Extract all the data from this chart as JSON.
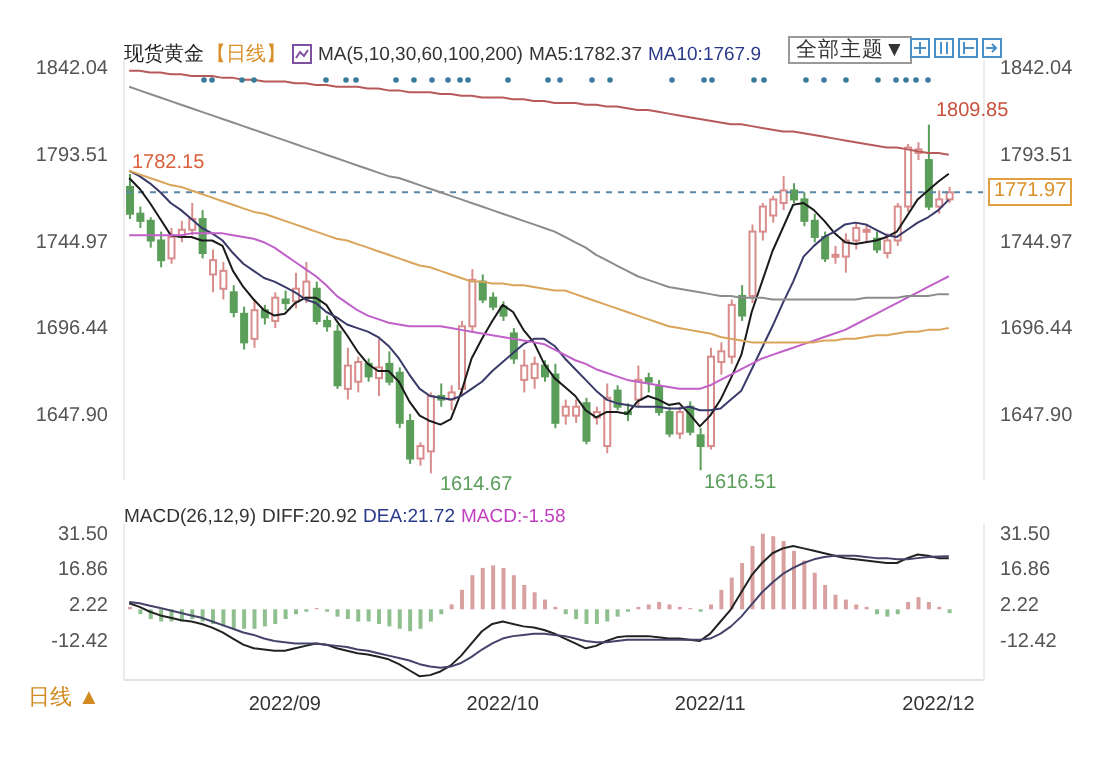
{
  "chart_data": [
    {
      "type": "candlestick",
      "title": "现货黄金",
      "subtitle": "【日线】",
      "categories": [
        null,
        null,
        null,
        null,
        null,
        null,
        null,
        null,
        null,
        null,
        null,
        null,
        null,
        null,
        null,
        "2022/09",
        null,
        null,
        null,
        null,
        null,
        null,
        null,
        null,
        null,
        null,
        null,
        null,
        null,
        null,
        null,
        null,
        null,
        null,
        null,
        null,
        "2022/10",
        null,
        null,
        null,
        null,
        null,
        null,
        null,
        null,
        null,
        null,
        null,
        null,
        null,
        null,
        null,
        null,
        null,
        null,
        null,
        "2022/11",
        null,
        null,
        null,
        null,
        null,
        null,
        null,
        null,
        null,
        null,
        null,
        null,
        null,
        null,
        null,
        null,
        null,
        null,
        null,
        null,
        null,
        "2022/12",
        null
      ],
      "ohlc": [
        [
          1775,
          1782.15,
          1757,
          1760
        ],
        [
          1760,
          1764,
          1752,
          1756
        ],
        [
          1756,
          1758,
          1741,
          1745
        ],
        [
          1745,
          1750,
          1730,
          1734
        ],
        [
          1735,
          1752,
          1732,
          1747
        ],
        [
          1747,
          1756,
          1744,
          1751
        ],
        [
          1751,
          1766,
          1748,
          1757
        ],
        [
          1757,
          1762,
          1735,
          1738
        ],
        [
          1726,
          1740,
          1716,
          1734
        ],
        [
          1718,
          1733,
          1712,
          1728
        ],
        [
          1716,
          1720,
          1702,
          1705
        ],
        [
          1704,
          1708,
          1684,
          1688
        ],
        [
          1690,
          1712,
          1685,
          1706
        ],
        [
          1706,
          1709,
          1698,
          1702
        ],
        [
          1700,
          1716,
          1696,
          1713
        ],
        [
          1712,
          1717,
          1706,
          1710
        ],
        [
          1711,
          1727,
          1707,
          1718
        ],
        [
          1713,
          1733,
          1710,
          1722
        ],
        [
          1718,
          1722,
          1698,
          1700
        ],
        [
          1700,
          1703,
          1694,
          1697
        ],
        [
          1694,
          1698,
          1662,
          1664
        ],
        [
          1662,
          1685,
          1656,
          1675
        ],
        [
          1666,
          1680,
          1660,
          1677
        ],
        [
          1676,
          1679,
          1666,
          1669
        ],
        [
          1668,
          1690,
          1658,
          1674
        ],
        [
          1676,
          1683,
          1664,
          1666
        ],
        [
          1671,
          1674,
          1640,
          1643
        ],
        [
          1644,
          1648,
          1620,
          1623
        ],
        [
          1623,
          1632,
          1619,
          1630
        ],
        [
          1627,
          1660,
          1614.67,
          1658
        ],
        [
          1658,
          1665,
          1652,
          1656
        ],
        [
          1656,
          1664,
          1650,
          1660
        ],
        [
          1662,
          1700,
          1658,
          1697
        ],
        [
          1697,
          1729,
          1694,
          1723
        ],
        [
          1722,
          1726,
          1710,
          1712
        ],
        [
          1713,
          1716,
          1706,
          1708
        ],
        [
          1708,
          1711,
          1700,
          1703
        ],
        [
          1693,
          1696,
          1676,
          1679
        ],
        [
          1667,
          1684,
          1660,
          1675
        ],
        [
          1668,
          1680,
          1662,
          1676
        ],
        [
          1675,
          1678,
          1666,
          1669
        ],
        [
          1670,
          1676,
          1640,
          1643
        ],
        [
          1647,
          1656,
          1642,
          1652
        ],
        [
          1647,
          1656,
          1643,
          1652
        ],
        [
          1654,
          1657,
          1631,
          1633
        ],
        [
          1646,
          1652,
          1642,
          1649
        ],
        [
          1630,
          1665,
          1626,
          1657
        ],
        [
          1661,
          1664,
          1650,
          1652
        ],
        [
          1649,
          1654,
          1644,
          1648
        ],
        [
          1656,
          1675,
          1652,
          1667
        ],
        [
          1668,
          1671,
          1660,
          1666
        ],
        [
          1663,
          1667,
          1647,
          1649
        ],
        [
          1649,
          1652,
          1635,
          1637
        ],
        [
          1637,
          1652,
          1634,
          1649
        ],
        [
          1652,
          1655,
          1636,
          1638
        ],
        [
          1636,
          1640,
          1616.51,
          1630
        ],
        [
          1630,
          1685,
          1628,
          1680
        ],
        [
          1677,
          1688,
          1670,
          1683
        ],
        [
          1680,
          1712,
          1676,
          1709
        ],
        [
          1714,
          1720,
          1700,
          1703
        ],
        [
          1714,
          1754,
          1710,
          1750
        ],
        [
          1750,
          1766,
          1745,
          1764
        ],
        [
          1759,
          1770,
          1755,
          1768
        ],
        [
          1766,
          1781,
          1762,
          1773
        ],
        [
          1773,
          1777,
          1766,
          1768
        ],
        [
          1768,
          1772,
          1753,
          1756
        ],
        [
          1756,
          1760,
          1744,
          1747
        ],
        [
          1747,
          1750,
          1733,
          1735
        ],
        [
          1736,
          1742,
          1732,
          1737
        ],
        [
          1736,
          1749,
          1727,
          1745
        ],
        [
          1745,
          1755,
          1740,
          1752
        ],
        [
          1750,
          1754,
          1744,
          1751
        ],
        [
          1746,
          1750,
          1738,
          1740
        ],
        [
          1738,
          1749,
          1735,
          1745
        ],
        [
          1745,
          1766,
          1742,
          1764
        ],
        [
          1764,
          1799,
          1761,
          1797
        ],
        [
          1794,
          1800,
          1790,
          1796
        ],
        [
          1790,
          1809.85,
          1762,
          1764
        ],
        [
          1764,
          1773,
          1760,
          1768
        ],
        [
          1768,
          1775,
          1766,
          1771.97
        ]
      ],
      "colors": [
        "#5a9e5a",
        "#5a9e5a",
        "#5a9e5a",
        "#5a9e5a",
        "#d98c8c",
        "#d98c8c",
        "#d98c8c",
        "#5a9e5a",
        "#d98c8c",
        "#d98c8c",
        "#5a9e5a",
        "#5a9e5a",
        "#d98c8c",
        "#5a9e5a",
        "#d98c8c",
        "#5a9e5a",
        "#d98c8c",
        "#d98c8c",
        "#5a9e5a",
        "#5a9e5a",
        "#5a9e5a",
        "#d98c8c",
        "#d98c8c",
        "#5a9e5a",
        "#d98c8c",
        "#5a9e5a",
        "#5a9e5a",
        "#5a9e5a",
        "#d98c8c",
        "#d98c8c",
        "#5a9e5a",
        "#d98c8c",
        "#d98c8c",
        "#d98c8c",
        "#5a9e5a",
        "#5a9e5a",
        "#5a9e5a",
        "#5a9e5a",
        "#d98c8c",
        "#d98c8c",
        "#5a9e5a",
        "#5a9e5a",
        "#d98c8c",
        "#d98c8c",
        "#5a9e5a",
        "#d98c8c",
        "#d98c8c",
        "#5a9e5a",
        "#5a9e5a",
        "#d98c8c",
        "#5a9e5a",
        "#5a9e5a",
        "#5a9e5a",
        "#d98c8c",
        "#5a9e5a",
        "#5a9e5a",
        "#d98c8c",
        "#d98c8c",
        "#d98c8c",
        "#5a9e5a",
        "#d98c8c",
        "#d98c8c",
        "#d98c8c",
        "#d98c8c",
        "#5a9e5a",
        "#5a9e5a",
        "#5a9e5a",
        "#5a9e5a",
        "#d98c8c",
        "#d98c8c",
        "#d98c8c",
        "#d98c8c",
        "#5a9e5a",
        "#d98c8c",
        "#d98c8c",
        "#d98c8c",
        "#d98c8c",
        "#5a9e5a",
        "#d98c8c",
        "#d98c8c"
      ],
      "series": [
        {
          "type": "line",
          "color": "#1a1a1a",
          "values": [
            1780,
            1774,
            1766,
            1757,
            1748,
            1747,
            1747,
            1745,
            1745,
            1742,
            1728,
            1719,
            1712,
            1706,
            1703,
            1704,
            1710,
            1713,
            1713,
            1709,
            1700,
            1692,
            1683,
            1676,
            1672,
            1672,
            1666,
            1655,
            1647,
            1644,
            1642,
            1645,
            1660,
            1679,
            1690,
            1700,
            1709,
            1705,
            1695,
            1688,
            1676,
            1668,
            1663,
            1658,
            1650,
            1646,
            1649,
            1649,
            1648,
            1655,
            1658,
            1656,
            1653,
            1654,
            1648,
            1641,
            1647,
            1656,
            1668,
            1681,
            1705,
            1722,
            1739,
            1752,
            1765,
            1766,
            1762,
            1756,
            1749,
            1744,
            1743,
            1744,
            1745,
            1747,
            1750,
            1759,
            1768,
            1773,
            1778,
            1782.37
          ]
        },
        {
          "type": "line",
          "color": "#3a3a6a",
          "values": [
            1784,
            1781,
            1777,
            1772,
            1766,
            1762,
            1757,
            1752,
            1749,
            1745,
            1738,
            1732,
            1728,
            1724,
            1722,
            1719,
            1716,
            1712,
            1710,
            1705,
            1702,
            1698,
            1696,
            1694,
            1691,
            1686,
            1679,
            1670,
            1662,
            1658,
            1657,
            1656,
            1658,
            1662,
            1666,
            1672,
            1677,
            1682,
            1687,
            1690,
            1690,
            1686,
            1679,
            1673,
            1667,
            1661,
            1656,
            1654,
            1653,
            1652,
            1652,
            1652,
            1651,
            1651,
            1652,
            1650,
            1650,
            1651,
            1656,
            1661,
            1673,
            1685,
            1697,
            1710,
            1722,
            1736,
            1742,
            1747,
            1750,
            1754,
            1755,
            1754,
            1751,
            1748,
            1747,
            1751,
            1755,
            1758,
            1762,
            1767.9
          ]
        },
        {
          "type": "line",
          "color": "#c060c8",
          "values": [
            1748,
            1748,
            1748,
            1748,
            1748,
            1748,
            1749,
            1749,
            1749,
            1749,
            1748,
            1747,
            1746,
            1744,
            1741,
            1737,
            1733,
            1729,
            1725,
            1720,
            1714,
            1710,
            1706,
            1703,
            1701,
            1699,
            1698,
            1697,
            1697,
            1697,
            1697,
            1696,
            1695,
            1694,
            1693,
            1692,
            1691,
            1690,
            1689,
            1688,
            1687,
            1684,
            1681,
            1678,
            1676,
            1673,
            1671,
            1669,
            1667,
            1666,
            1665,
            1664,
            1663,
            1662,
            1662,
            1662,
            1664,
            1667,
            1670,
            1673,
            1676,
            1679,
            1681,
            1683,
            1685,
            1687,
            1689,
            1691,
            1693,
            1695,
            1698,
            1701,
            1704,
            1707,
            1710,
            1713,
            1716,
            1719,
            1722,
            1725
          ]
        },
        {
          "type": "line",
          "color": "#d9a55a",
          "values": [
            1784,
            1782,
            1780,
            1778,
            1776,
            1775,
            1773,
            1771,
            1769,
            1767,
            1765,
            1763,
            1761,
            1760,
            1758,
            1756,
            1754,
            1752,
            1750,
            1748,
            1746,
            1745,
            1743,
            1741,
            1739,
            1737,
            1735,
            1733,
            1731,
            1730,
            1728,
            1726,
            1724,
            1722,
            1722,
            1721,
            1721,
            1720,
            1720,
            1719,
            1718,
            1717,
            1717,
            1715,
            1713,
            1711,
            1709,
            1707,
            1705,
            1703,
            1701,
            1699,
            1697,
            1696,
            1695,
            1694,
            1693,
            1691,
            1690,
            1689,
            1688,
            1688,
            1688,
            1688,
            1688,
            1688,
            1688,
            1689,
            1689,
            1690,
            1690,
            1691,
            1692,
            1692,
            1693,
            1694,
            1694,
            1695,
            1695,
            1696
          ]
        },
        {
          "type": "line",
          "color": "#8c8c8c",
          "values": [
            1831,
            1829,
            1827,
            1825,
            1823,
            1821,
            1819,
            1817,
            1815,
            1813,
            1811,
            1809,
            1807,
            1805,
            1803,
            1801,
            1799,
            1797,
            1795,
            1793,
            1791,
            1789,
            1787,
            1785,
            1783,
            1781,
            1780,
            1778,
            1776,
            1774,
            1772,
            1770,
            1768,
            1766,
            1764,
            1762,
            1760,
            1758,
            1756,
            1754,
            1752,
            1750,
            1747,
            1744,
            1741,
            1737,
            1734,
            1731,
            1728,
            1725,
            1723,
            1721,
            1719,
            1718,
            1717,
            1716,
            1715,
            1714,
            1714,
            1713,
            1713,
            1713,
            1712,
            1712,
            1712,
            1712,
            1712,
            1712,
            1712,
            1712,
            1712,
            1713,
            1713,
            1713,
            1713,
            1714,
            1714,
            1714,
            1715,
            1715
          ]
        },
        {
          "type": "line",
          "color": "#b85a5a",
          "values": [
            1840,
            1840,
            1839,
            1839,
            1838,
            1838,
            1837,
            1837,
            1837,
            1836,
            1836,
            1835,
            1835,
            1834,
            1834,
            1834,
            1833,
            1833,
            1832,
            1832,
            1831,
            1831,
            1831,
            1830,
            1830,
            1829,
            1829,
            1828,
            1828,
            1828,
            1827,
            1827,
            1826,
            1826,
            1825,
            1825,
            1825,
            1824,
            1824,
            1823,
            1823,
            1822,
            1822,
            1822,
            1821,
            1821,
            1820,
            1820,
            1819,
            1818,
            1818,
            1817,
            1816,
            1815,
            1814,
            1813,
            1812,
            1811,
            1810,
            1810,
            1809,
            1808,
            1807,
            1806,
            1806,
            1805,
            1804,
            1803,
            1802,
            1801,
            1800,
            1799,
            1798,
            1797,
            1797,
            1796,
            1795,
            1794,
            1794,
            1793
          ]
        }
      ],
      "ylim": [
        1611,
        1846
      ],
      "yticks": [
        {
          "value": 1647.9,
          "label": "1647.90"
        },
        1696.44,
        1744.97,
        1793.51,
        1842.04
      ],
      "y2lim": [
        1611,
        1846
      ],
      "y2ticks": [
        {
          "value": 1647.9,
          "label": "1647.90"
        },
        1696.44,
        1744.97,
        1793.51,
        1842.04
      ],
      "tick_labels": "y",
      "ref_lines": [
        {
          "axis": "y2",
          "value": 1771.97,
          "label": "1771.97",
          "color": "#5a86a8",
          "line_style": "dashed"
        }
      ],
      "annotations": [
        "MA(5,10,30,60,100,200)",
        "MA5:1782.37",
        "MA10:1767.9",
        "全部主题▼",
        "1782.15",
        "1809.85",
        "1614.67",
        "1616.51"
      ]
    },
    {
      "type": "bar",
      "categories": [
        null,
        null,
        null,
        null,
        null,
        null,
        null,
        null,
        null,
        null,
        null,
        null,
        null,
        null,
        null,
        "2022/09",
        null,
        null,
        null,
        null,
        null,
        null,
        null,
        null,
        null,
        null,
        null,
        null,
        null,
        null,
        null,
        null,
        null,
        null,
        null,
        null,
        "2022/10",
        null,
        null,
        null,
        null,
        null,
        null,
        null,
        null,
        null,
        null,
        null,
        null,
        null,
        null,
        null,
        null,
        null,
        null,
        null,
        "2022/11",
        null,
        null,
        null,
        null,
        null,
        null,
        null,
        null,
        null,
        null,
        null,
        null,
        null,
        null,
        null,
        null,
        null,
        null,
        null,
        null,
        null,
        "2022/12",
        null
      ],
      "series": [
        {
          "type": "bar",
          "values": [
            1,
            -2,
            -4,
            -5,
            -5,
            -5,
            -4,
            -5,
            -6,
            -7,
            -8,
            -8,
            -8,
            -7,
            -6,
            -4,
            -2,
            -1,
            0.5,
            -1,
            -3,
            -4,
            -5,
            -5,
            -6,
            -7,
            -8,
            -9,
            -8,
            -5,
            -2,
            2,
            8,
            14,
            17,
            18,
            17,
            14,
            10,
            7,
            4,
            1,
            -2,
            -4,
            -6,
            -6,
            -5,
            -3,
            -1,
            1,
            2,
            3,
            2,
            1,
            0.5,
            -1,
            2,
            8,
            13,
            19,
            26,
            31,
            30,
            28,
            24,
            20,
            15,
            10,
            6,
            4,
            2,
            1,
            -2,
            -3,
            -2,
            3,
            5,
            3,
            1,
            -1.58
          ],
          "colors": [
            "#d9a0a0",
            "#8fbf8f",
            "#8fbf8f",
            "#8fbf8f",
            "#8fbf8f",
            "#8fbf8f",
            "#8fbf8f",
            "#8fbf8f",
            "#8fbf8f",
            "#8fbf8f",
            "#8fbf8f",
            "#8fbf8f",
            "#8fbf8f",
            "#8fbf8f",
            "#8fbf8f",
            "#8fbf8f",
            "#8fbf8f",
            "#8fbf8f",
            "#d9a0a0",
            "#8fbf8f",
            "#8fbf8f",
            "#8fbf8f",
            "#8fbf8f",
            "#8fbf8f",
            "#8fbf8f",
            "#8fbf8f",
            "#8fbf8f",
            "#8fbf8f",
            "#8fbf8f",
            "#8fbf8f",
            "#8fbf8f",
            "#d9a0a0",
            "#d9a0a0",
            "#d9a0a0",
            "#d9a0a0",
            "#d9a0a0",
            "#d9a0a0",
            "#d9a0a0",
            "#d9a0a0",
            "#d9a0a0",
            "#d9a0a0",
            "#d9a0a0",
            "#8fbf8f",
            "#8fbf8f",
            "#8fbf8f",
            "#8fbf8f",
            "#8fbf8f",
            "#8fbf8f",
            "#8fbf8f",
            "#d9a0a0",
            "#d9a0a0",
            "#d9a0a0",
            "#d9a0a0",
            "#d9a0a0",
            "#d9a0a0",
            "#8fbf8f",
            "#d9a0a0",
            "#d9a0a0",
            "#d9a0a0",
            "#d9a0a0",
            "#d9a0a0",
            "#d9a0a0",
            "#d9a0a0",
            "#d9a0a0",
            "#d9a0a0",
            "#d9a0a0",
            "#d9a0a0",
            "#d9a0a0",
            "#d9a0a0",
            "#d9a0a0",
            "#d9a0a0",
            "#d9a0a0",
            "#8fbf8f",
            "#8fbf8f",
            "#8fbf8f",
            "#d9a0a0",
            "#d9a0a0",
            "#d9a0a0",
            "#d9a0a0",
            "#8fbf8f"
          ]
        },
        {
          "type": "line",
          "color": "#222222",
          "values": [
            2.5,
            1,
            -1,
            -2.5,
            -3.5,
            -4.5,
            -5,
            -6,
            -7.5,
            -9.5,
            -12,
            -14.5,
            -16,
            -16.5,
            -17,
            -17,
            -16,
            -15,
            -14,
            -14.5,
            -16,
            -17,
            -18,
            -18.5,
            -19.5,
            -20.5,
            -22.5,
            -25,
            -27.5,
            -27,
            -25.5,
            -23,
            -19,
            -14,
            -9,
            -6,
            -5,
            -6,
            -7,
            -7.5,
            -8.5,
            -10,
            -12,
            -14,
            -16,
            -15,
            -13,
            -11.5,
            -11,
            -11,
            -11,
            -11.5,
            -12,
            -12,
            -12.5,
            -13,
            -10,
            -5,
            0,
            7,
            14,
            19,
            23,
            25,
            26,
            25,
            24,
            23,
            22,
            21,
            20.5,
            20,
            19.5,
            19,
            19,
            21,
            22.5,
            22,
            21,
            20.92
          ]
        },
        {
          "type": "line",
          "color": "#44446a",
          "values": [
            3,
            2.5,
            1.5,
            0.5,
            -0.5,
            -1.5,
            -2.5,
            -3.5,
            -5,
            -6.5,
            -8,
            -9.5,
            -10.5,
            -12,
            -13,
            -13.5,
            -14,
            -14,
            -14,
            -14.5,
            -15,
            -15.5,
            -16.5,
            -17,
            -18,
            -19,
            -20,
            -21,
            -22.5,
            -23.5,
            -24,
            -23.5,
            -22,
            -19.5,
            -16.5,
            -14,
            -12,
            -11,
            -10.5,
            -10,
            -10,
            -10.5,
            -11,
            -12,
            -13,
            -13.5,
            -13.5,
            -13,
            -12.5,
            -12.5,
            -12.5,
            -12.5,
            -12.5,
            -12.5,
            -12.5,
            -12.5,
            -12,
            -10,
            -7,
            -3,
            2,
            7,
            11,
            14.5,
            17,
            19,
            20.5,
            21.5,
            22,
            22,
            22,
            21.5,
            21,
            21,
            20.5,
            20.5,
            21,
            21.5,
            21.7,
            21.72
          ]
        }
      ],
      "ylim": [
        -29,
        35
      ],
      "yticks": [
        -12.42,
        2.22,
        16.86,
        {
          "value": 31.5,
          "label": "31.50"
        }
      ],
      "y2lim": [
        -29,
        35
      ],
      "y2ticks": [
        -12.42,
        2.22,
        16.86,
        {
          "value": 31.5,
          "label": "31.50"
        }
      ],
      "annotations": [
        "MACD(26,12,9)",
        "DIFF:20.92",
        "DEA:21.72",
        "MACD:-1.58",
        "日线 ▲"
      ]
    }
  ]
}
